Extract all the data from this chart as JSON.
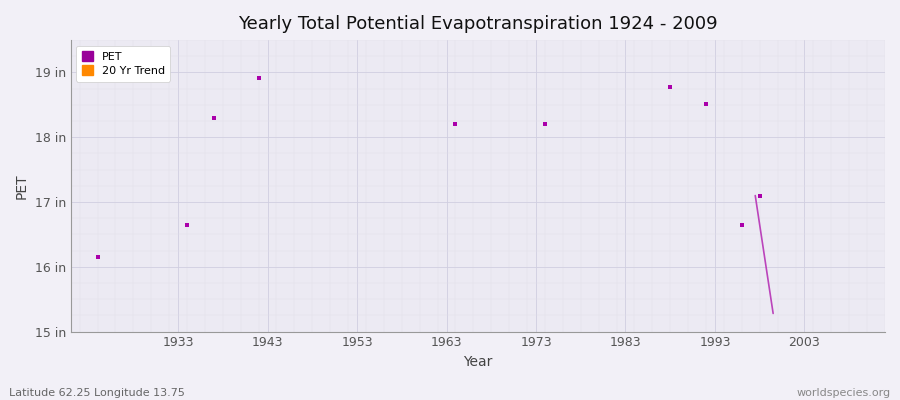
{
  "title": "Yearly Total Potential Evapotranspiration 1924 - 2009",
  "xlabel": "Year",
  "ylabel": "PET",
  "footnote_left": "Latitude 62.25 Longitude 13.75",
  "footnote_right": "worldspecies.org",
  "xlim": [
    1921,
    2012
  ],
  "ylim": [
    15.0,
    19.5
  ],
  "xticks": [
    1933,
    1943,
    1953,
    1963,
    1973,
    1983,
    1993,
    2003
  ],
  "yticks": [
    15,
    16,
    17,
    18,
    19
  ],
  "ytick_labels": [
    "15 in",
    "16 in",
    "17 in",
    "18 in",
    "19 in"
  ],
  "pet_points": [
    [
      1924,
      16.15
    ],
    [
      1934,
      16.65
    ],
    [
      1937,
      18.3
    ],
    [
      1942,
      18.92
    ],
    [
      1964,
      18.2
    ],
    [
      1974,
      18.2
    ],
    [
      1988,
      18.78
    ],
    [
      1992,
      18.52
    ],
    [
      1996,
      16.65
    ],
    [
      1998,
      17.1
    ]
  ],
  "trend_line": [
    [
      1997.5,
      17.1
    ],
    [
      1999.5,
      15.28
    ]
  ],
  "pet_color": "#aa00aa",
  "trend_color": "#bb44bb",
  "legend_pet_color": "#990099",
  "legend_trend_color": "#ff8800",
  "background_color": "#f2f0f7",
  "plot_bg": "#eceaf3",
  "grid_major_color": "#d0cee0",
  "grid_minor_color": "#e0dee8",
  "title_fontsize": 13,
  "axis_label_fontsize": 10,
  "tick_fontsize": 9,
  "footnote_fontsize": 8,
  "spine_color": "#999999"
}
